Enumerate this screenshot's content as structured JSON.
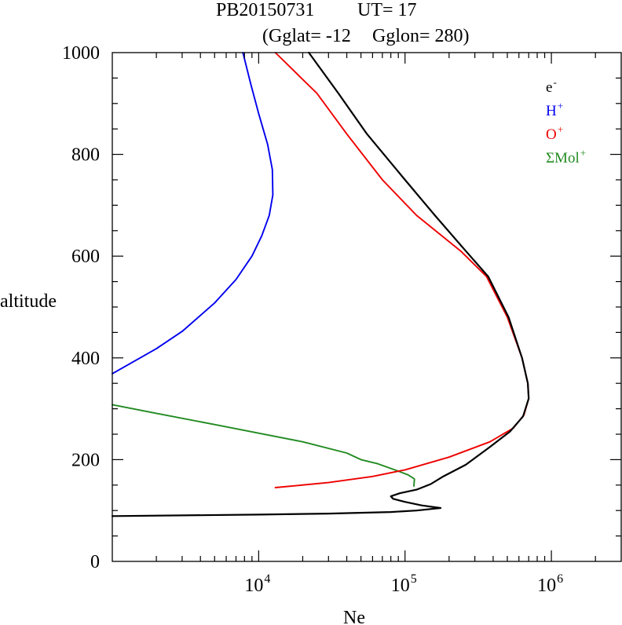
{
  "chart_data": {
    "type": "line",
    "title": {
      "line1_left": "PB20150731",
      "line1_right": "UT=  17",
      "line2_left": "(Gglat= -12",
      "line2_right": "Gglon=  280)"
    },
    "xlabel": "Ne",
    "ylabel": "altitude",
    "x_scale": "log",
    "xlim": [
      1000,
      3000000
    ],
    "ylim": [
      0,
      1000
    ],
    "x_ticks": [
      {
        "value": 10000,
        "base": "10",
        "exp": "4"
      },
      {
        "value": 100000,
        "base": "10",
        "exp": "5"
      },
      {
        "value": 1000000,
        "base": "10",
        "exp": "6"
      }
    ],
    "y_ticks": [
      {
        "value": 0,
        "label": "0"
      },
      {
        "value": 200,
        "label": "200"
      },
      {
        "value": 400,
        "label": "400"
      },
      {
        "value": 600,
        "label": "600"
      },
      {
        "value": 800,
        "label": "800"
      },
      {
        "value": 1000,
        "label": "1000"
      }
    ],
    "legend": [
      {
        "base": "e",
        "sup": "-",
        "color": "#000000"
      },
      {
        "base": "H",
        "sup": "+",
        "color": "#0000ee"
      },
      {
        "base": "O",
        "sup": "+",
        "color": "#ee0000"
      },
      {
        "base": "ΣMol",
        "sup": "+",
        "color": "#228B22"
      }
    ],
    "series": [
      {
        "name": "ΣMol+",
        "color": "#228B22",
        "points": [
          [
            1000,
            308
          ],
          [
            2000,
            291
          ],
          [
            5000,
            269
          ],
          [
            10000,
            252
          ],
          [
            20000,
            235
          ],
          [
            40000,
            213
          ],
          [
            50000,
            200
          ],
          [
            65000,
            192
          ],
          [
            85000,
            180
          ],
          [
            105000,
            170
          ],
          [
            116000,
            162
          ],
          [
            115000,
            148
          ]
        ]
      },
      {
        "name": "H+",
        "color": "#0000ee",
        "points": [
          [
            1000,
            369
          ],
          [
            2000,
            418
          ],
          [
            3000,
            452
          ],
          [
            5000,
            508
          ],
          [
            7000,
            554
          ],
          [
            9000,
            600
          ],
          [
            10500,
            640
          ],
          [
            11800,
            680
          ],
          [
            12500,
            720
          ],
          [
            12400,
            770
          ],
          [
            11500,
            820
          ],
          [
            10000,
            880
          ],
          [
            8800,
            940
          ],
          [
            7800,
            1000
          ]
        ]
      },
      {
        "name": "O+",
        "color": "#ee0000",
        "points": [
          [
            13000,
            145
          ],
          [
            30000,
            155
          ],
          [
            60000,
            167
          ],
          [
            100000,
            180
          ],
          [
            200000,
            205
          ],
          [
            380000,
            235
          ],
          [
            550000,
            262
          ],
          [
            650000,
            288
          ],
          [
            700000,
            320
          ],
          [
            690000,
            350
          ],
          [
            630000,
            400
          ],
          [
            500000,
            480
          ],
          [
            360000,
            560
          ],
          [
            240000,
            610
          ],
          [
            120000,
            680
          ],
          [
            70000,
            750
          ],
          [
            40000,
            840
          ],
          [
            25000,
            920
          ],
          [
            13000,
            1000
          ]
        ]
      },
      {
        "name": "e-",
        "color": "#000000",
        "points": [
          [
            1000,
            89
          ],
          [
            10000,
            92
          ],
          [
            30000,
            94
          ],
          [
            80000,
            97
          ],
          [
            120000,
            100
          ],
          [
            175000,
            105
          ],
          [
            130000,
            110
          ],
          [
            100000,
            117
          ],
          [
            83000,
            123
          ],
          [
            80000,
            128
          ],
          [
            92000,
            134
          ],
          [
            120000,
            141
          ],
          [
            150000,
            152
          ],
          [
            180000,
            166
          ],
          [
            260000,
            190
          ],
          [
            380000,
            225
          ],
          [
            520000,
            255
          ],
          [
            640000,
            285
          ],
          [
            700000,
            320
          ],
          [
            690000,
            350
          ],
          [
            630000,
            400
          ],
          [
            510000,
            480
          ],
          [
            370000,
            560
          ],
          [
            260000,
            610
          ],
          [
            160000,
            680
          ],
          [
            100000,
            750
          ],
          [
            55000,
            840
          ],
          [
            35000,
            920
          ],
          [
            22000,
            1000
          ]
        ]
      }
    ]
  }
}
